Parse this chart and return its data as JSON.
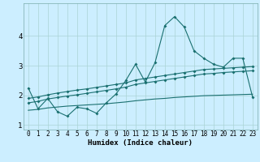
{
  "xlabel": "Humidex (Indice chaleur)",
  "background_color": "#cceeff",
  "line_color": "#1a7070",
  "grid_color": "#aad4d4",
  "x_values": [
    0,
    1,
    2,
    3,
    4,
    5,
    6,
    7,
    8,
    9,
    10,
    11,
    12,
    13,
    14,
    15,
    16,
    17,
    18,
    19,
    20,
    21,
    22,
    23
  ],
  "line1_y": [
    2.25,
    1.55,
    1.9,
    1.45,
    1.3,
    1.6,
    1.55,
    1.4,
    1.75,
    2.05,
    2.5,
    3.05,
    2.45,
    3.1,
    4.35,
    4.65,
    4.3,
    3.5,
    3.25,
    3.05,
    2.95,
    3.25,
    3.25,
    1.95
  ],
  "line2_y": [
    1.9,
    1.95,
    2.02,
    2.08,
    2.13,
    2.18,
    2.22,
    2.27,
    2.32,
    2.37,
    2.42,
    2.52,
    2.57,
    2.62,
    2.67,
    2.72,
    2.77,
    2.82,
    2.87,
    2.89,
    2.91,
    2.93,
    2.95,
    2.97
  ],
  "line3_y": [
    1.75,
    1.8,
    1.88,
    1.93,
    1.98,
    2.02,
    2.07,
    2.12,
    2.17,
    2.22,
    2.28,
    2.37,
    2.42,
    2.47,
    2.52,
    2.57,
    2.62,
    2.67,
    2.72,
    2.74,
    2.77,
    2.79,
    2.81,
    2.83
  ],
  "line4_y": [
    1.5,
    1.53,
    1.58,
    1.61,
    1.64,
    1.66,
    1.68,
    1.7,
    1.72,
    1.75,
    1.78,
    1.82,
    1.85,
    1.88,
    1.9,
    1.93,
    1.95,
    1.97,
    1.99,
    2.0,
    2.01,
    2.02,
    2.03,
    2.04
  ],
  "ylim": [
    0.85,
    5.1
  ],
  "yticks": [
    1,
    2,
    3,
    4
  ],
  "xticks": [
    0,
    1,
    2,
    3,
    4,
    5,
    6,
    7,
    8,
    9,
    10,
    11,
    12,
    13,
    14,
    15,
    16,
    17,
    18,
    19,
    20,
    21,
    22,
    23
  ],
  "tick_fontsize": 5.5,
  "label_fontsize": 6.5
}
